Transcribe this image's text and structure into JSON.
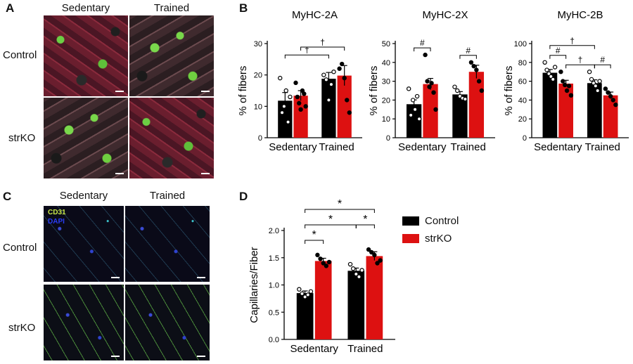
{
  "panels": {
    "a": {
      "label": "A",
      "col_sedentary": "Sedentary",
      "col_trained": "Trained",
      "row_control": "Control",
      "row_strko": "strKO"
    },
    "b": {
      "label": "B"
    },
    "c": {
      "label": "C",
      "col_sedentary": "Sedentary",
      "col_trained": "Trained",
      "row_control": "Control",
      "row_strko": "strKO",
      "stain_cd31": "CD31",
      "stain_dapi": "DAPI"
    },
    "d": {
      "label": "D"
    }
  },
  "colors": {
    "control": "#000000",
    "strko": "#dd1111",
    "cd31": "#c9e84a",
    "dapi": "#2b3df5"
  },
  "legend": {
    "control": "Control",
    "strko": "strKO"
  },
  "chart_data": [
    {
      "type": "bar",
      "title": "MyHC-2A",
      "ylabel": "% of fibers",
      "categories": [
        "Sedentary",
        "Trained"
      ],
      "ylim": [
        0,
        30
      ],
      "yticks": [
        "0",
        "10",
        "20",
        "30"
      ],
      "series": [
        {
          "name": "Control",
          "values": [
            11.8,
            18.8
          ],
          "sem": [
            2.6,
            2.0
          ],
          "points": [
            [
              19,
              8,
              10,
              15,
              5,
              13
            ],
            [
              20,
              18.5,
              12,
              17,
              21
            ]
          ]
        },
        {
          "name": "strKO",
          "values": [
            13.4,
            19.8
          ],
          "sem": [
            1.6,
            3.2
          ],
          "points": [
            [
              17.5,
              13,
              11,
              9,
              15,
              14,
              10
            ],
            [
              22,
              23.5,
              19,
              12,
              8
            ]
          ]
        }
      ],
      "annotations": [
        {
          "text": "†",
          "span": [
            0,
            2
          ]
        },
        {
          "text": "†",
          "span": [
            1,
            3
          ]
        }
      ]
    },
    {
      "type": "bar",
      "title": "MyHC-2X",
      "ylabel": "% of fibers",
      "categories": [
        "Sedentary",
        "Trained"
      ],
      "ylim": [
        0,
        50
      ],
      "yticks": [
        "0",
        "10",
        "20",
        "30",
        "40",
        "50"
      ],
      "series": [
        {
          "name": "Control",
          "values": [
            17.8,
            23.0
          ],
          "sem": [
            2.3,
            1.5
          ],
          "points": [
            [
              26,
              12,
              20,
              15,
              22,
              10
            ],
            [
              27,
              25,
              22,
              21,
              20.5
            ]
          ]
        },
        {
          "name": "strKO",
          "values": [
            28.5,
            35.0
          ],
          "sem": [
            3.0,
            3.5
          ],
          "points": [
            [
              44,
              30,
              27,
              29,
              24,
              15
            ],
            [
              40,
              38,
              36,
              30,
              25
            ]
          ]
        }
      ],
      "annotations": [
        {
          "text": "#",
          "span": [
            0,
            1
          ]
        },
        {
          "text": "#",
          "span": [
            2,
            3
          ]
        }
      ]
    },
    {
      "type": "bar",
      "title": "MyHC-2B",
      "ylabel": "% of fibers",
      "categories": [
        "Sedentary",
        "Trained"
      ],
      "ylim": [
        0,
        100
      ],
      "yticks": [
        "0",
        "20",
        "40",
        "60",
        "80",
        "100"
      ],
      "series": [
        {
          "name": "Control",
          "values": [
            69.0,
            58.0
          ],
          "sem": [
            3.5,
            3.5
          ],
          "points": [
            [
              80,
              72,
              68,
              65,
              62,
              75
            ],
            [
              70,
              62,
              58,
              55,
              50,
              60
            ]
          ]
        },
        {
          "name": "strKO",
          "values": [
            57.5,
            45.0
          ],
          "sem": [
            3.5,
            3.5
          ],
          "points": [
            [
              70,
              60,
              56,
              50,
              55,
              45
            ],
            [
              52,
              48,
              44,
              40,
              35
            ]
          ]
        }
      ],
      "annotations": [
        {
          "text": "†",
          "span": [
            0,
            2
          ]
        },
        {
          "text": "#",
          "span": [
            0,
            1
          ]
        },
        {
          "text": "†",
          "span": [
            1,
            2
          ]
        },
        {
          "text": "#",
          "span": [
            2,
            3
          ]
        }
      ]
    },
    {
      "type": "bar",
      "title": "",
      "ylabel": "Capillaries/Fiber",
      "categories": [
        "Sedentary",
        "Trained"
      ],
      "ylim": [
        0,
        2.0
      ],
      "yticks": [
        "0.0",
        "0.5",
        "1.0",
        "1.5",
        "2.0"
      ],
      "series": [
        {
          "name": "Control",
          "values": [
            0.85,
            1.26
          ],
          "sem": [
            0.04,
            0.05
          ],
          "points": [
            [
              0.92,
              0.84,
              0.78,
              0.82,
              0.88
            ],
            [
              1.38,
              1.3,
              1.2,
              1.15,
              1.27
            ]
          ]
        },
        {
          "name": "strKO",
          "values": [
            1.44,
            1.53
          ],
          "sem": [
            0.05,
            0.08
          ],
          "points": [
            [
              1.55,
              1.48,
              1.4,
              1.35,
              1.42
            ],
            [
              1.65,
              1.6,
              1.55,
              1.4,
              1.45
            ]
          ]
        }
      ],
      "annotations": [
        {
          "text": "*",
          "span": [
            0,
            3
          ]
        },
        {
          "text": "*",
          "span": [
            0,
            2
          ]
        },
        {
          "text": "*",
          "span": [
            0,
            1
          ]
        },
        {
          "text": "*",
          "span": [
            2,
            3
          ]
        }
      ]
    }
  ]
}
